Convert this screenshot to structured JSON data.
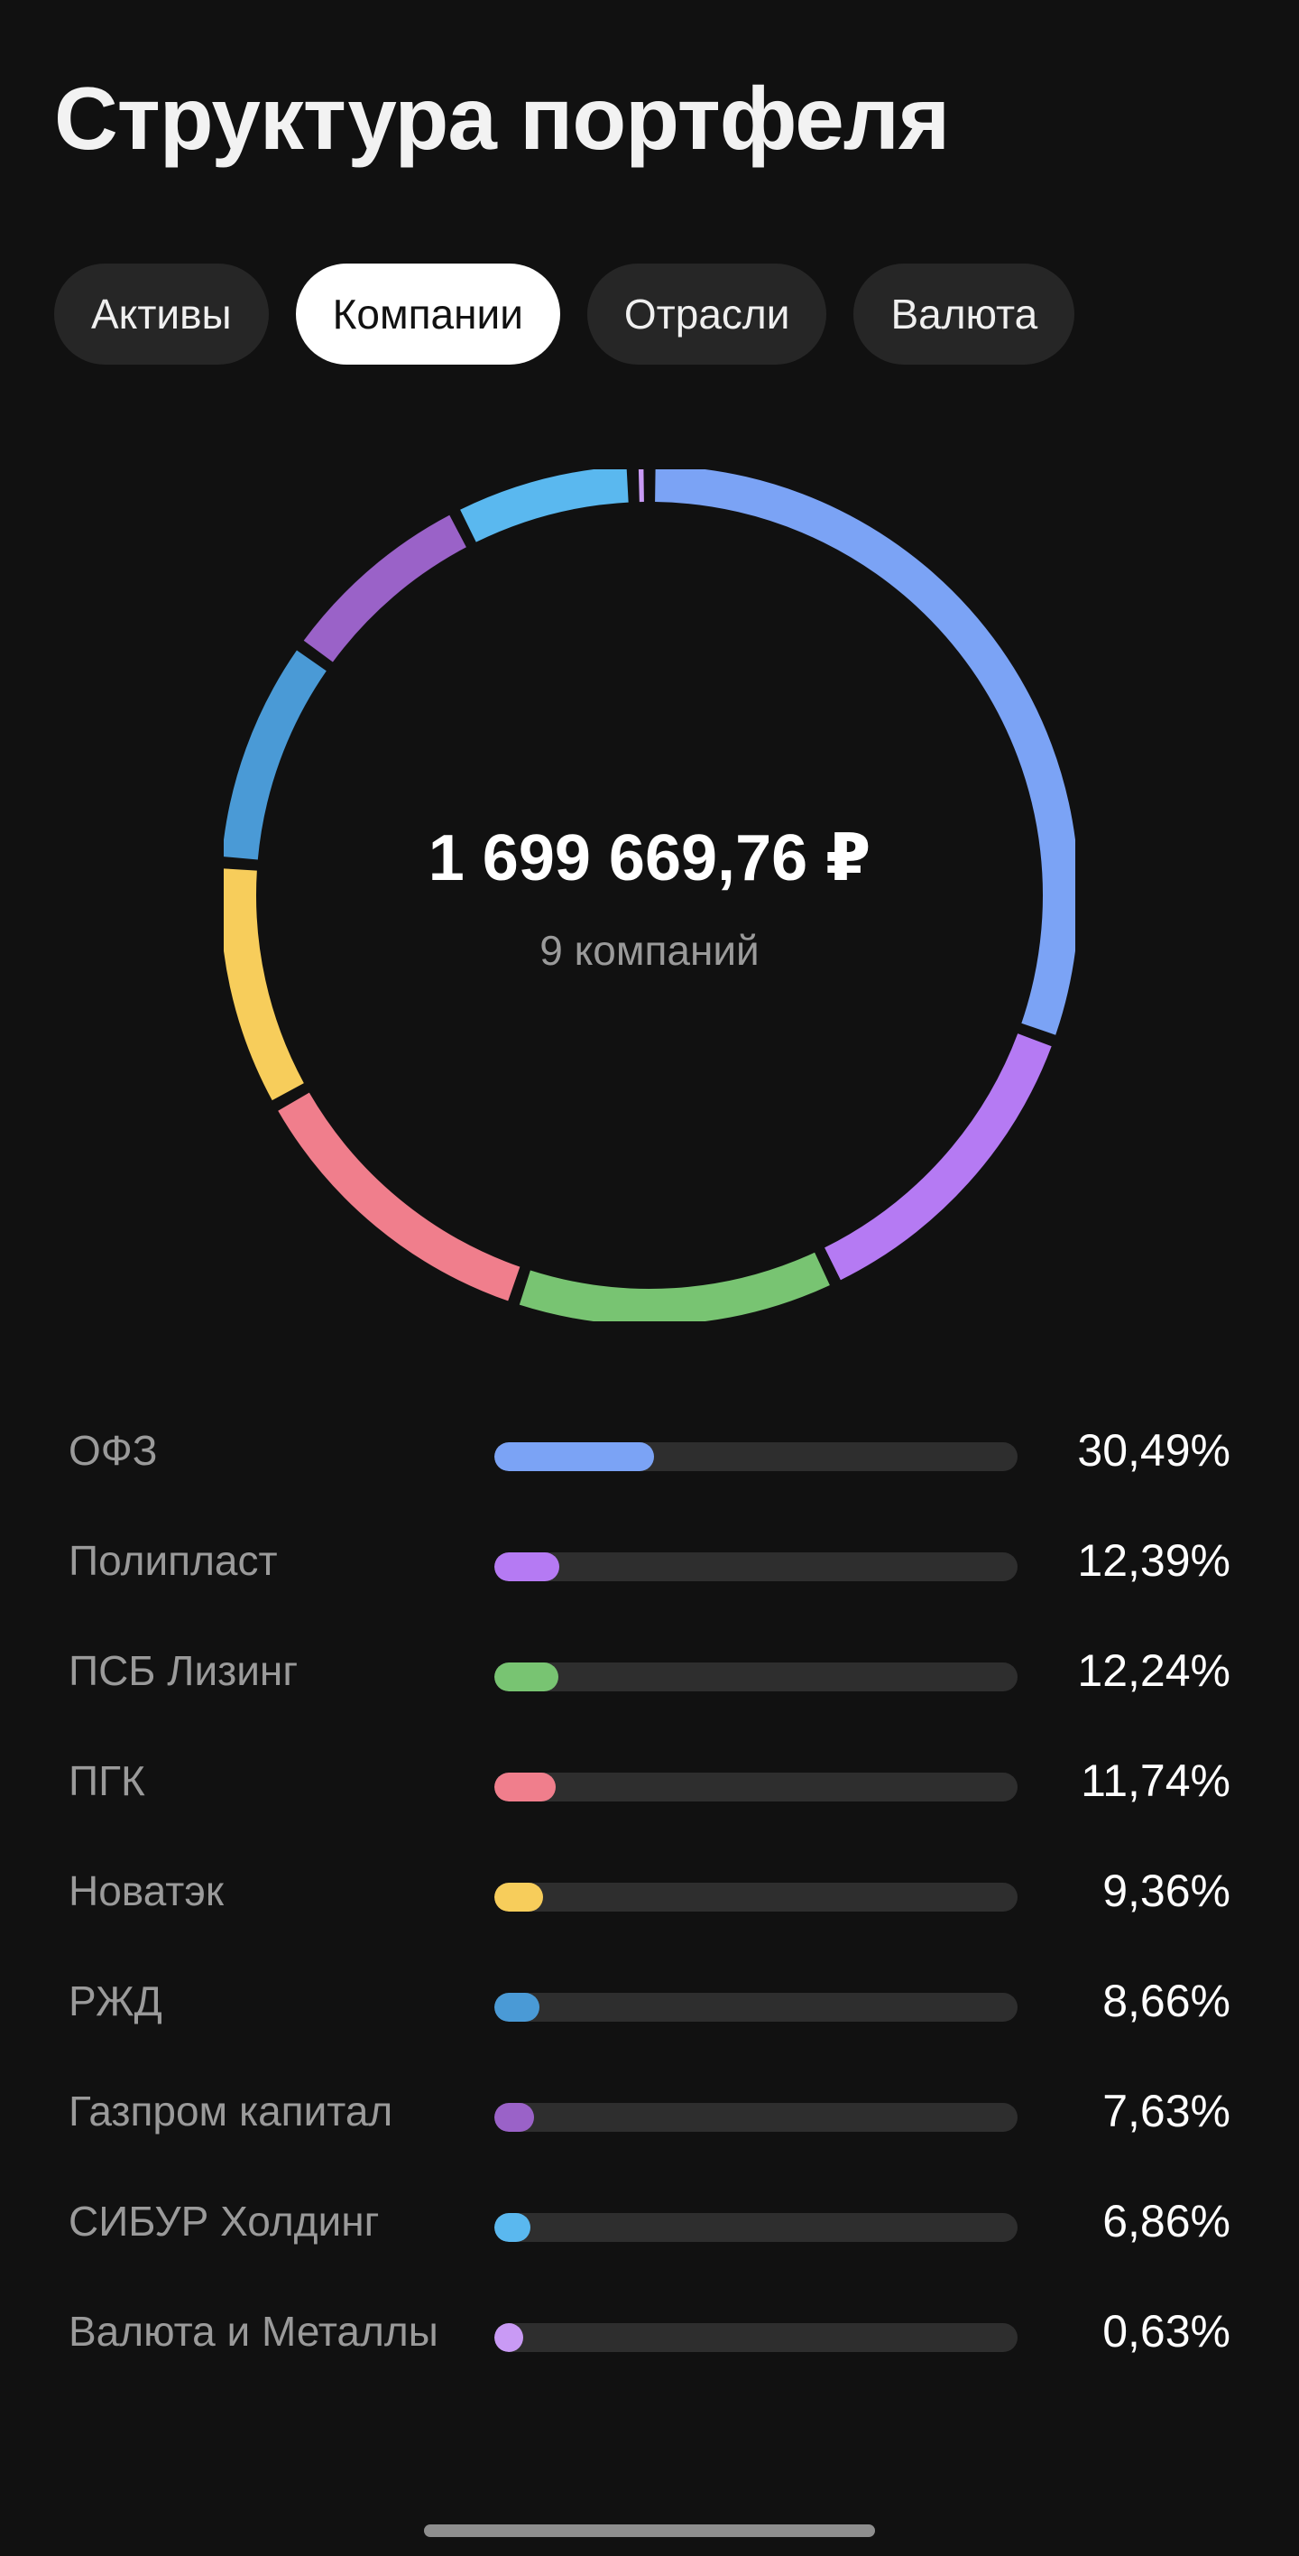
{
  "title": "Структура портфеля",
  "tabs": [
    {
      "label": "Активы",
      "active": false
    },
    {
      "label": "Компании",
      "active": true
    },
    {
      "label": "Отрасли",
      "active": false
    },
    {
      "label": "Валюта",
      "active": false
    }
  ],
  "summary": {
    "total": "1 699 669,76 ₽",
    "count_label": "9 компаний"
  },
  "chart_data": {
    "type": "pie",
    "variant": "donut",
    "categories": [
      "ОФЗ",
      "Полипласт",
      "ПСБ Лизинг",
      "ПГК",
      "Новатэк",
      "РЖД",
      "Газпром капитал",
      "СИБУР Холдинг",
      "Валюта и Металлы"
    ],
    "values": [
      30.49,
      12.39,
      12.24,
      11.74,
      9.36,
      8.66,
      7.63,
      6.86,
      0.63
    ],
    "value_labels": [
      "30,49%",
      "12,39%",
      "12,24%",
      "11,74%",
      "9,36%",
      "8,66%",
      "7,63%",
      "6,86%",
      "0,63%"
    ],
    "colors": [
      "#7ba3f5",
      "#b57af3",
      "#78c472",
      "#f07e8c",
      "#f7cd5b",
      "#4a9ad6",
      "#9a62c8",
      "#5ab8ef",
      "#c99af5"
    ],
    "start": "top, clockwise"
  },
  "bar_scale_max_percent": 100
}
